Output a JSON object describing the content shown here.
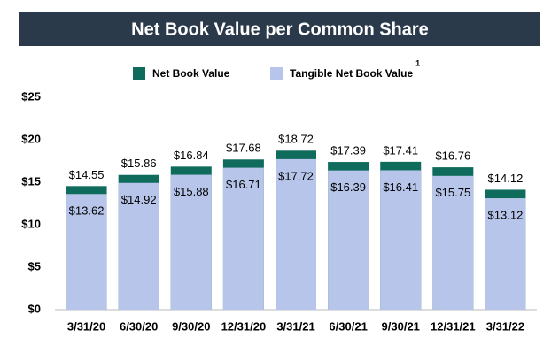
{
  "chart_data": {
    "type": "overlapping-bar",
    "title": "Net Book Value per Common Share",
    "categories": [
      "3/31/20",
      "6/30/20",
      "9/30/20",
      "12/31/20",
      "3/31/21",
      "6/30/21",
      "9/30/21",
      "12/31/21",
      "3/31/22"
    ],
    "series": [
      {
        "name": "Net Book Value",
        "color": "#0f6b5c",
        "values": [
          14.55,
          15.86,
          16.84,
          17.68,
          18.72,
          17.39,
          17.41,
          16.76,
          14.12
        ],
        "value_labels": [
          "$14.55",
          "$15.86",
          "$16.84",
          "$17.68",
          "$18.72",
          "$17.39",
          "$17.41",
          "$16.76",
          "$14.12"
        ]
      },
      {
        "name": "Tangible Net Book Value",
        "footnote": "1",
        "color": "#b7c5ea",
        "values": [
          13.62,
          14.92,
          15.88,
          16.71,
          17.72,
          16.39,
          16.41,
          15.75,
          13.12
        ],
        "value_labels": [
          "$13.62",
          "$14.92",
          "$15.88",
          "$16.71",
          "$17.72",
          "$16.39",
          "$16.41",
          "$15.75",
          "$13.12"
        ]
      }
    ],
    "ylim": [
      0,
      25
    ],
    "yticks": [
      {
        "value": 0,
        "label": "$0"
      },
      {
        "value": 5,
        "label": "$5"
      },
      {
        "value": 10,
        "label": "$10"
      },
      {
        "value": 15,
        "label": "$15"
      },
      {
        "value": 20,
        "label": "$20"
      },
      {
        "value": 25,
        "label": "$25"
      }
    ],
    "grid": false
  }
}
